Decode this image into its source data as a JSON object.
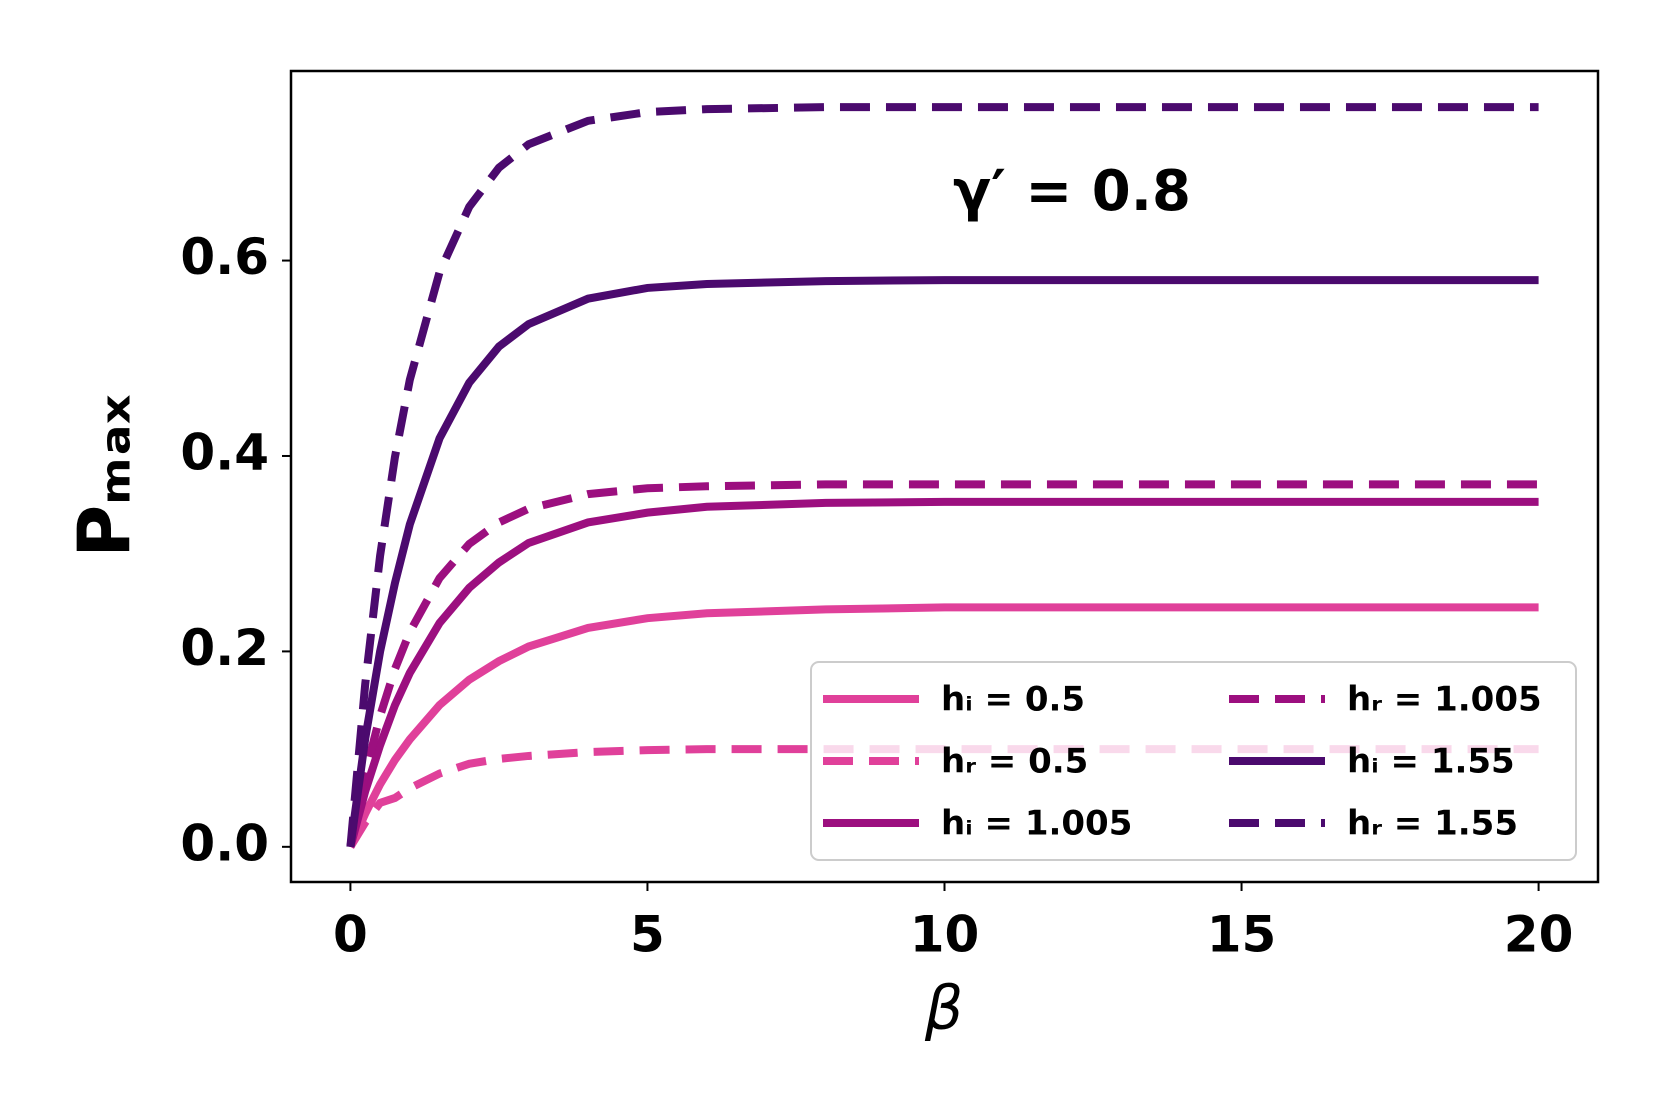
{
  "chart_data": {
    "type": "line",
    "annotation": "γ′ = 0.8",
    "xlabel": "β",
    "ylabel": "Pₘₐₓ",
    "x": [
      0,
      0.25,
      0.5,
      0.75,
      1,
      1.5,
      2,
      2.5,
      3,
      4,
      5,
      6,
      8,
      10,
      12,
      14,
      16,
      18,
      20
    ],
    "series": [
      {
        "name": "hᵢ = 0.5",
        "color": "#e0409a",
        "dashed": false,
        "values": [
          0,
          0.034,
          0.064,
          0.089,
          0.11,
          0.145,
          0.171,
          0.19,
          0.205,
          0.224,
          0.234,
          0.239,
          0.243,
          0.245,
          0.245,
          0.245,
          0.245,
          0.245,
          0.245
        ]
      },
      {
        "name": "hᵣ = 0.5",
        "color": "#e0409a",
        "dashed": true,
        "values": [
          0,
          0.025,
          0.045,
          0.05,
          0.06,
          0.075,
          0.085,
          0.09,
          0.093,
          0.097,
          0.099,
          0.1,
          0.1,
          0.1,
          0.1,
          0.1,
          0.1,
          0.1,
          0.1
        ]
      },
      {
        "name": "hᵢ = 1.005",
        "color": "#9c0f7f",
        "dashed": false,
        "values": [
          0,
          0.057,
          0.104,
          0.145,
          0.178,
          0.229,
          0.265,
          0.291,
          0.311,
          0.332,
          0.342,
          0.348,
          0.352,
          0.353,
          0.353,
          0.353,
          0.353,
          0.353,
          0.353
        ]
      },
      {
        "name": "hᵣ = 1.005",
        "color": "#9c0f7f",
        "dashed": true,
        "values": [
          0,
          0.075,
          0.134,
          0.182,
          0.22,
          0.275,
          0.31,
          0.332,
          0.346,
          0.361,
          0.367,
          0.369,
          0.371,
          0.371,
          0.371,
          0.371,
          0.371,
          0.371,
          0.371
        ]
      },
      {
        "name": "hᵢ = 1.55",
        "color": "#4b0a6e",
        "dashed": false,
        "values": [
          0,
          0.111,
          0.2,
          0.27,
          0.33,
          0.418,
          0.475,
          0.512,
          0.535,
          0.561,
          0.572,
          0.576,
          0.579,
          0.58,
          0.58,
          0.58,
          0.58,
          0.58,
          0.58
        ]
      },
      {
        "name": "hᵣ = 1.55",
        "color": "#4b0a6e",
        "dashed": true,
        "values": [
          0,
          0.167,
          0.298,
          0.399,
          0.478,
          0.588,
          0.655,
          0.695,
          0.719,
          0.743,
          0.752,
          0.755,
          0.757,
          0.757,
          0.757,
          0.757,
          0.757,
          0.757,
          0.757
        ]
      }
    ],
    "xlim": [
      -1,
      21
    ],
    "ylim": [
      -0.036,
      0.794
    ],
    "xticks": [
      0,
      5,
      10,
      15,
      20
    ],
    "yticks": [
      {
        "value": 0,
        "label": "0.0"
      },
      0.2,
      0.4,
      0.6
    ],
    "grid": false,
    "legend": "lower right"
  }
}
